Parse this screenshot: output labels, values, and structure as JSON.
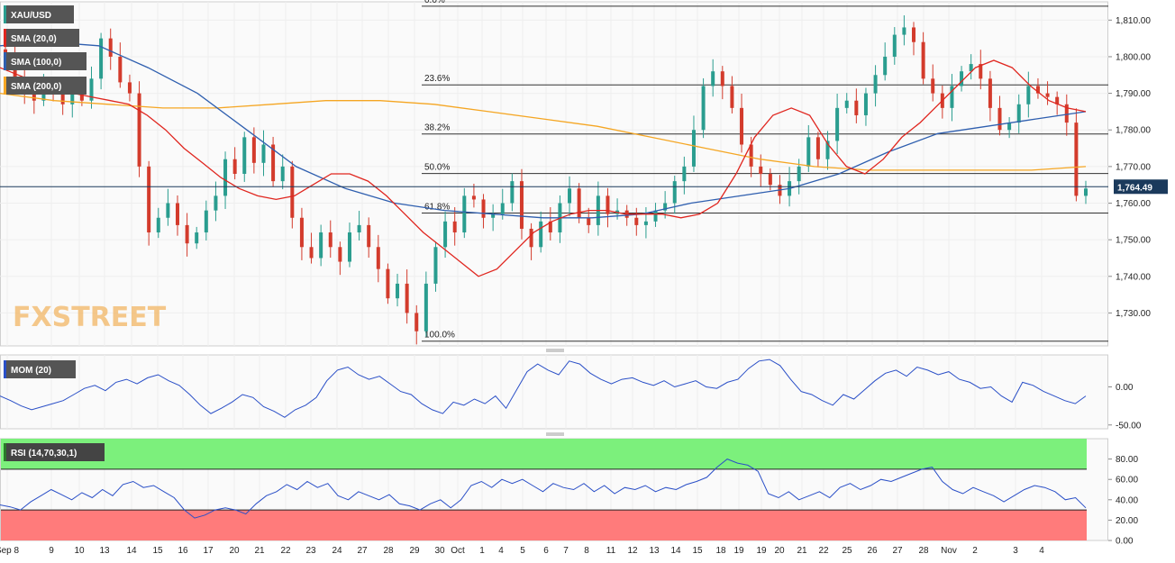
{
  "symbol": "XAU/USD",
  "price_label": "1,764.49",
  "colors": {
    "sma20": "#e0261f",
    "sma100": "#2f5faf",
    "sma200": "#f5a623",
    "up": "#2a9d8f",
    "down": "#d33b2c",
    "mom": "#2a4fc7",
    "rsi": "#2a4fc7",
    "rsi_over": "#7cf07c",
    "rsi_under": "#ff7b7b"
  },
  "legend": {
    "symbol_tag": "XAU/USD",
    "sma20_tag": "SMA (20,0)",
    "sma100_tag": "SMA (100,0)",
    "sma200_tag": "SMA (200,0)",
    "mom_tag": "MOM (20)",
    "rsi_tag": "RSI (14,70,30,1)"
  },
  "watermark": "FXSTREET",
  "chart_data": [
    {
      "type": "candlestick",
      "title": "XAU/USD",
      "y_ticks": [
        1730,
        1740,
        1750,
        1760,
        1770,
        1780,
        1790,
        1800,
        1810
      ],
      "y_tick_labels": [
        "1,730.00",
        "1,740.00",
        "1,750.00",
        "1,760.00",
        "1,770.00",
        "1,780.00",
        "1,790.00",
        "1,800.00",
        "1,810.00"
      ],
      "ylim": [
        1721,
        1815
      ],
      "x_tick_labels": [
        "Sep 8",
        "9",
        "10",
        "13",
        "14",
        "15",
        "16",
        "17",
        "20",
        "21",
        "22",
        "23",
        "24",
        "27",
        "28",
        "29",
        "30",
        "Oct",
        "1",
        "4",
        "5",
        "6",
        "7",
        "8",
        "11",
        "12",
        "13",
        "14",
        "15",
        "18",
        "19",
        "19",
        "20",
        "21",
        "22",
        "25",
        "26",
        "27",
        "28",
        "Nov",
        "2",
        "3",
        "4"
      ],
      "last_price": 1764.49,
      "fibonacci": [
        {
          "label": "0.0%",
          "value": 1813.8
        },
        {
          "label": "23.6%",
          "value": 1792.3
        },
        {
          "label": "38.2%",
          "value": 1778.9
        },
        {
          "label": "50.0%",
          "value": 1768.1
        },
        {
          "label": "61.8%",
          "value": 1757.3
        },
        {
          "label": "100.0%",
          "value": 1722.3
        }
      ],
      "close_path": [
        1800,
        1793,
        1790,
        1788,
        1792,
        1790,
        1787,
        1790,
        1788,
        1794,
        1805,
        1800,
        1793,
        1790,
        1770,
        1752,
        1756,
        1760,
        1754,
        1749,
        1752,
        1758,
        1762,
        1772,
        1768,
        1778,
        1771,
        1776,
        1766,
        1770,
        1756,
        1748,
        1745,
        1752,
        1748,
        1744,
        1752,
        1754,
        1748,
        1742,
        1734,
        1738,
        1730,
        1725,
        1738,
        1748,
        1755,
        1752,
        1762,
        1761,
        1756,
        1757,
        1760,
        1766,
        1753,
        1748,
        1755,
        1752,
        1760,
        1764,
        1756,
        1754,
        1762,
        1757,
        1758,
        1756,
        1754,
        1755,
        1758,
        1760,
        1766,
        1770,
        1780,
        1792,
        1796,
        1792,
        1786,
        1776,
        1770,
        1768,
        1765,
        1762,
        1766,
        1770,
        1778,
        1772,
        1777,
        1786,
        1788,
        1784,
        1790,
        1795,
        1800,
        1806,
        1808,
        1804,
        1794,
        1790,
        1786,
        1792,
        1796,
        1798,
        1794,
        1786,
        1780,
        1782,
        1787,
        1792,
        1790,
        1789,
        1787,
        1782,
        1762,
        1764
      ],
      "sma20": [
        1797,
        1795,
        1793,
        1791,
        1790,
        1789,
        1788,
        1787,
        1784,
        1780,
        1775,
        1771,
        1767,
        1764,
        1762,
        1761,
        1762,
        1765,
        1768,
        1768,
        1766,
        1762,
        1757,
        1752,
        1748,
        1744,
        1740,
        1742,
        1747,
        1752,
        1755,
        1757,
        1758,
        1758,
        1757,
        1757,
        1757,
        1756,
        1757,
        1760,
        1768,
        1778,
        1784,
        1786,
        1784,
        1776,
        1770,
        1768,
        1772,
        1778,
        1782,
        1787,
        1792,
        1797,
        1799,
        1797,
        1792,
        1788,
        1786,
        1785
      ],
      "sma100": [
        1803,
        1804,
        1803,
        1797,
        1790,
        1780,
        1770,
        1764,
        1760,
        1758,
        1757,
        1756,
        1756,
        1757,
        1760,
        1762,
        1764,
        1768,
        1774,
        1779,
        1781,
        1783,
        1785
      ],
      "sma200": [
        1790,
        1788,
        1787,
        1786,
        1786,
        1787,
        1788,
        1788,
        1787,
        1785,
        1783,
        1781,
        1778,
        1775,
        1772,
        1770,
        1769,
        1769,
        1769,
        1769,
        1770
      ]
    },
    {
      "type": "line",
      "title": "MOM (20)",
      "y_ticks": [
        0,
        -50
      ],
      "y_tick_labels": [
        "0.00",
        "-50.00"
      ],
      "ylim": [
        -55,
        42
      ],
      "values": [
        -12,
        -18,
        -25,
        -30,
        -26,
        -22,
        -18,
        -10,
        -2,
        2,
        -5,
        6,
        10,
        4,
        12,
        16,
        8,
        2,
        -10,
        -24,
        -35,
        -28,
        -20,
        -10,
        -14,
        -26,
        -32,
        -40,
        -30,
        -24,
        -14,
        8,
        22,
        26,
        16,
        10,
        14,
        4,
        -6,
        -10,
        -22,
        -30,
        -35,
        -20,
        -24,
        -16,
        -22,
        -12,
        -28,
        -4,
        20,
        30,
        22,
        16,
        34,
        30,
        18,
        10,
        4,
        10,
        12,
        6,
        2,
        8,
        0,
        4,
        8,
        0,
        -2,
        6,
        10,
        24,
        34,
        36,
        28,
        10,
        -6,
        -10,
        -18,
        -24,
        -10,
        -16,
        -4,
        8,
        18,
        22,
        14,
        26,
        22,
        16,
        20,
        10,
        6,
        -2,
        0,
        -12,
        -20,
        6,
        2,
        -6,
        -12,
        -18,
        -22,
        -12
      ]
    },
    {
      "type": "line",
      "title": "RSI (14,70,30,1)",
      "y_ticks": [
        0,
        20,
        40,
        60,
        80
      ],
      "y_tick_labels": [
        "0.00",
        "20.00",
        "40.00",
        "60.00",
        "80.00"
      ],
      "ylim": [
        0,
        100
      ],
      "thresholds": [
        70,
        30
      ],
      "values": [
        35,
        33,
        30,
        38,
        44,
        50,
        45,
        40,
        47,
        42,
        50,
        44,
        55,
        58,
        52,
        54,
        48,
        42,
        30,
        22,
        25,
        30,
        32,
        30,
        26,
        36,
        44,
        48,
        55,
        50,
        58,
        52,
        56,
        44,
        40,
        48,
        44,
        40,
        45,
        36,
        34,
        30,
        36,
        40,
        32,
        40,
        54,
        58,
        52,
        60,
        56,
        60,
        54,
        48,
        56,
        52,
        50,
        56,
        48,
        54,
        46,
        52,
        50,
        54,
        48,
        52,
        50,
        55,
        58,
        62,
        72,
        80,
        76,
        74,
        68,
        46,
        42,
        48,
        40,
        44,
        48,
        42,
        52,
        56,
        50,
        54,
        60,
        58,
        62,
        66,
        70,
        72,
        58,
        50,
        46,
        52,
        48,
        44,
        38,
        44,
        50,
        54,
        52,
        48,
        40,
        42,
        32
      ]
    }
  ]
}
